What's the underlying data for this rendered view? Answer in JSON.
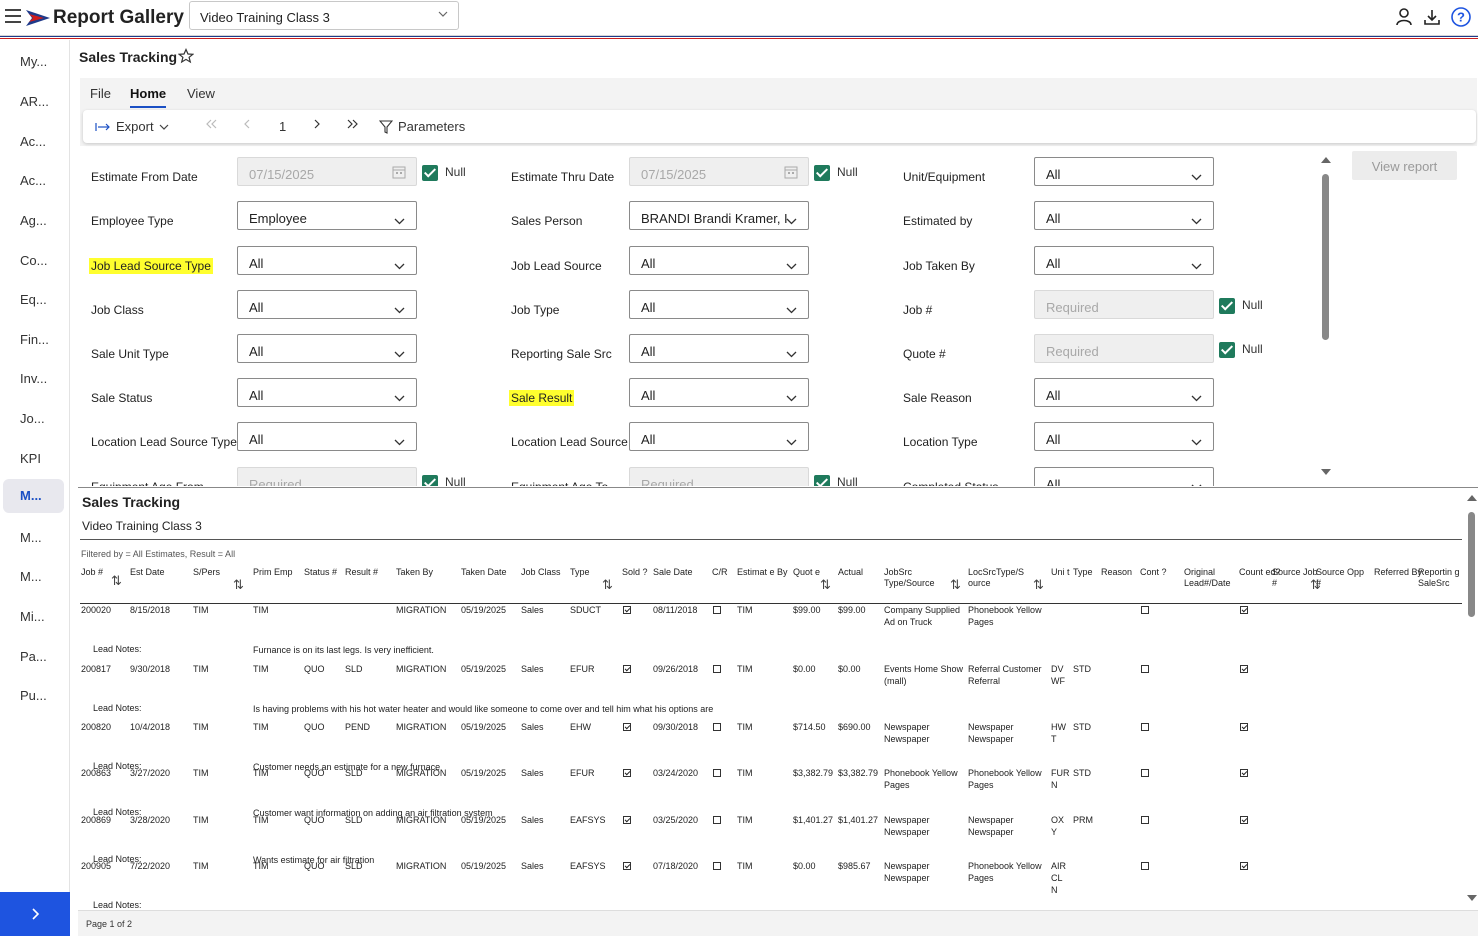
{
  "app": {
    "title": "Report Gallery",
    "selected_report": "Video Training Class 3"
  },
  "sidebar": {
    "items": [
      "My...",
      "AR...",
      "Ac...",
      "Ac...",
      "Ag...",
      "Co...",
      "Eq...",
      "Fin...",
      "Inv...",
      "Jo...",
      "KPI",
      "M...",
      "M...",
      "M...",
      "Mi...",
      "Pa...",
      "Pu..."
    ],
    "active_index": 11,
    "expand_label": ">"
  },
  "page": {
    "title": "Sales Tracking"
  },
  "ribbon": {
    "tabs": [
      "File",
      "Home",
      "View"
    ],
    "active_tab": "Home",
    "export_label": "Export",
    "page_number": "1",
    "parameters_label": "Parameters"
  },
  "params": {
    "null_label": "Null",
    "view_report_label": "View report",
    "rows": [
      [
        {
          "label": "Estimate From Date",
          "value": "07/15/2025",
          "kind": "date",
          "null": true
        },
        {
          "label": "Estimate Thru Date",
          "value": "07/15/2025",
          "kind": "date",
          "null": true
        },
        {
          "label": "Unit/Equipment",
          "value": "All",
          "kind": "select"
        }
      ],
      [
        {
          "label": "Employee Type",
          "value": "Employee",
          "kind": "select"
        },
        {
          "label": "Sales Person",
          "value": "BRANDI Brandi Kramer, I",
          "kind": "select"
        },
        {
          "label": "Estimated by",
          "value": "All",
          "kind": "select"
        }
      ],
      [
        {
          "label": "Job Lead Source Type",
          "value": "All",
          "kind": "select",
          "highlight": true
        },
        {
          "label": "Job Lead Source",
          "value": "All",
          "kind": "select"
        },
        {
          "label": "Job Taken By",
          "value": "All",
          "kind": "select"
        }
      ],
      [
        {
          "label": "Job Class",
          "value": "All",
          "kind": "select"
        },
        {
          "label": "Job Type",
          "value": "All",
          "kind": "select"
        },
        {
          "label": "Job #",
          "value": "Required",
          "kind": "text",
          "null": true
        }
      ],
      [
        {
          "label": "Sale Unit Type",
          "value": "All",
          "kind": "select"
        },
        {
          "label": "Reporting Sale Src",
          "value": "All",
          "kind": "select"
        },
        {
          "label": "Quote #",
          "value": "Required",
          "kind": "text",
          "null": true
        }
      ],
      [
        {
          "label": "Sale Status",
          "value": "All",
          "kind": "select"
        },
        {
          "label": "Sale Result",
          "value": "All",
          "kind": "select",
          "highlight": true
        },
        {
          "label": "Sale Reason",
          "value": "All",
          "kind": "select"
        }
      ],
      [
        {
          "label": "Location Lead Source Type",
          "value": "All",
          "kind": "select"
        },
        {
          "label": "Location Lead Source",
          "value": "All",
          "kind": "select"
        },
        {
          "label": "Location Type",
          "value": "All",
          "kind": "select"
        }
      ],
      [
        {
          "label": "Equipment Age From",
          "value": "Required",
          "kind": "text",
          "null": true
        },
        {
          "label": "Equipment Age To",
          "value": "Required",
          "kind": "text",
          "null": true
        },
        {
          "label": "Completed Status",
          "value": "All",
          "kind": "select"
        }
      ]
    ]
  },
  "report": {
    "title": "Sales Tracking",
    "subtitle": "Video Training Class 3",
    "filter_text": "Filtered by = All Estimates, Result = All",
    "lead_notes_label": "Lead Notes:",
    "headers": [
      "Job #",
      "Est Date",
      "S/Pers",
      "Prim Emp",
      "Status #",
      "Result #",
      "Taken By",
      "Taken Date",
      "Job Class",
      "Type",
      "Sold ?",
      "Sale Date",
      "C/R",
      "Estimat e By",
      "Quot e",
      "Actual",
      "JobSrc Type/Source",
      "LocSrcType/S ource",
      "Uni t",
      "Type",
      "Reason",
      "Cont ?",
      "Original Lead#/Date",
      "Count ed?",
      "Source Job #",
      "Source Opp #",
      "Referred By",
      "Reportin g SaleSrc"
    ],
    "rows": [
      {
        "job": "200020",
        "est_date": "8/15/2018",
        "spers": "TIM",
        "prim_emp": "TIM",
        "status": "",
        "result": "",
        "taken_by": "MIGRATION",
        "taken_date": "05/19/2025",
        "job_class": "Sales",
        "type": "SDUCT",
        "sold": true,
        "sale_date": "08/11/2018",
        "cr": false,
        "est_by": "TIM",
        "quote": "$99.00",
        "actual": "$99.00",
        "jobsrc": "Company Supplied Ad on Truck",
        "locsrc": "Phonebook Yellow Pages",
        "unit": "",
        "type2": "",
        "cont": false,
        "counted": true,
        "note": ""
      },
      {
        "job": "200817",
        "est_date": "9/30/2018",
        "spers": "TIM",
        "prim_emp": "TIM",
        "status": "QUO",
        "result": "SLD",
        "taken_by": "MIGRATION",
        "taken_date": "05/19/2025",
        "job_class": "Sales",
        "type": "EFUR",
        "sold": true,
        "sale_date": "09/26/2018",
        "cr": false,
        "est_by": "TIM",
        "quote": "$0.00",
        "actual": "$0.00",
        "jobsrc": "Events Home Show (mall)",
        "locsrc": "Referral Customer Referral",
        "unit": "DV WF",
        "type2": "STD",
        "cont": false,
        "counted": true,
        "note": "Furnance is on its last legs. Is very inefficient."
      },
      {
        "job": "200820",
        "est_date": "10/4/2018",
        "spers": "TIM",
        "prim_emp": "TIM",
        "status": "QUO",
        "result": "PEND",
        "taken_by": "MIGRATION",
        "taken_date": "05/19/2025",
        "job_class": "Sales",
        "type": "EHW",
        "sold": true,
        "sale_date": "09/30/2018",
        "cr": false,
        "est_by": "TIM",
        "quote": "$714.50",
        "actual": "$690.00",
        "jobsrc": "Newspaper Newspaper",
        "locsrc": "Newspaper Newspaper",
        "unit": "HW T",
        "type2": "STD",
        "cont": false,
        "counted": true,
        "note": "Is having problems with his hot water heater and would like someone to come over and tell him what his options are"
      },
      {
        "job": "200863",
        "est_date": "3/27/2020",
        "spers": "TIM",
        "prim_emp": "TIM",
        "status": "QUO",
        "result": "SLD",
        "taken_by": "MIGRATION",
        "taken_date": "05/19/2025",
        "job_class": "Sales",
        "type": "EFUR",
        "sold": true,
        "sale_date": "03/24/2020",
        "cr": false,
        "est_by": "TIM",
        "quote": "$3,382.79",
        "actual": "$3,382.79",
        "jobsrc": "Phonebook Yellow Pages",
        "locsrc": "Phonebook Yellow Pages",
        "unit": "FUR N",
        "type2": "STD",
        "cont": false,
        "counted": true,
        "note": "Customer needs an estimate for a new furnace"
      },
      {
        "job": "200869",
        "est_date": "3/28/2020",
        "spers": "TIM",
        "prim_emp": "TIM",
        "status": "QUO",
        "result": "SLD",
        "taken_by": "MIGRATION",
        "taken_date": "05/19/2025",
        "job_class": "Sales",
        "type": "EAFSYS",
        "sold": true,
        "sale_date": "03/25/2020",
        "cr": false,
        "est_by": "TIM",
        "quote": "$1,401.27",
        "actual": "$1,401.27",
        "jobsrc": "Newspaper Newspaper",
        "locsrc": "Newspaper Newspaper",
        "unit": "OX Y",
        "type2": "PRM",
        "cont": false,
        "counted": true,
        "note": "Customer want information on adding an air filtration system"
      },
      {
        "job": "200905",
        "est_date": "7/22/2020",
        "spers": "TIM",
        "prim_emp": "TIM",
        "status": "QUO",
        "result": "SLD",
        "taken_by": "MIGRATION",
        "taken_date": "05/19/2025",
        "job_class": "Sales",
        "type": "EAFSYS",
        "sold": true,
        "sale_date": "07/18/2020",
        "cr": false,
        "est_by": "TIM",
        "quote": "$0.00",
        "actual": "$985.67",
        "jobsrc": "Newspaper Newspaper",
        "locsrc": "Phonebook Yellow Pages",
        "unit": "AIR CL N",
        "type2": "",
        "cont": false,
        "counted": true,
        "note": "Wants estimate for air filtration"
      }
    ],
    "footer": "Page 1 of 2"
  },
  "icons": {
    "menu": "hamburger-icon",
    "user": "user-icon",
    "download": "download-icon",
    "help": "help-icon",
    "star": "star-icon",
    "export": "export-icon",
    "filter": "filter-icon",
    "calendar": "calendar-icon"
  },
  "colors": {
    "accent": "#1a4fc4",
    "sidebar_button": "#1e54e0",
    "checkbox": "#1f7a5c",
    "highlight": "#ffff2e"
  }
}
